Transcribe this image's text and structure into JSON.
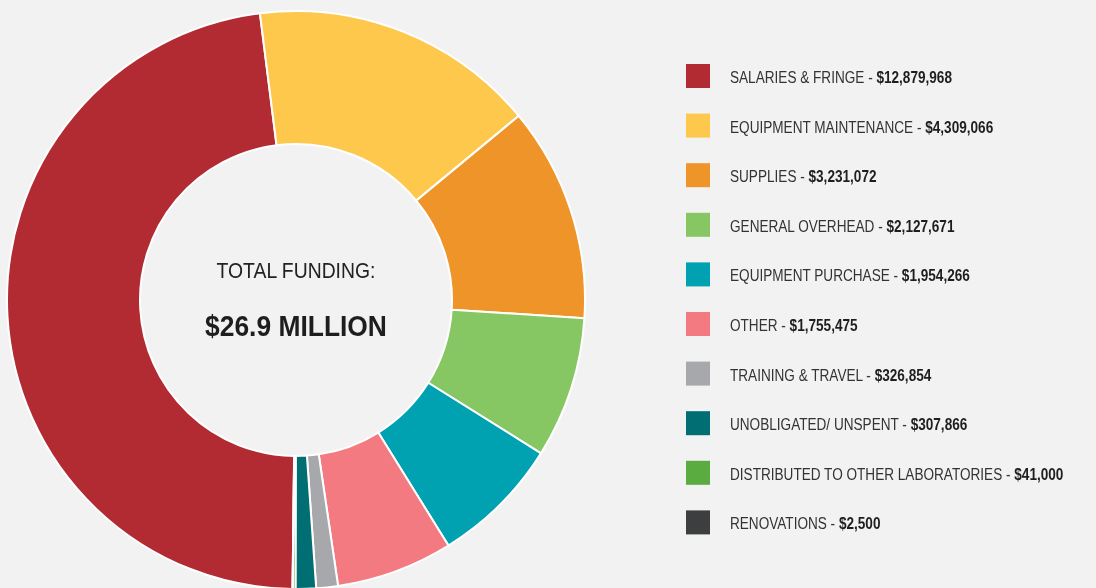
{
  "chart_data": {
    "type": "donut",
    "categories": [
      "SALARIES & FRINGE -",
      "EQUIPMENT MAINTENANCE -",
      "SUPPLIES -",
      "GENERAL OVERHEAD -",
      "EQUIPMENT PURCHASE -",
      "OTHER -",
      "TRAINING & TRAVEL -",
      "UNOBLIGATED/ UNSPENT -",
      "DISTRIBUTED TO OTHER LABORATORIES -",
      "RENOVATIONS  -"
    ],
    "values": [
      12879968,
      4309066,
      3231072,
      2127671,
      1954266,
      1755475,
      326854,
      307866,
      41000,
      2500
    ],
    "value_labels": [
      "$12,879,968",
      "$4,309,066",
      "$3,231,072",
      "$2,127,671",
      "$1,954,266",
      "$1,755,475",
      "$326,854",
      "$307,866",
      "$41,000",
      "$2,500"
    ],
    "colors": [
      "#b22a32",
      "#fec84c",
      "#ee9428",
      "#87c763",
      "#00a1b1",
      "#f47a81",
      "#a7a8ac",
      "#016e74",
      "#5aab40",
      "#3d3e40"
    ],
    "annotations": [
      "TOTAL FUNDING:",
      "$26.9 MILLION"
    ],
    "legend": "right"
  }
}
